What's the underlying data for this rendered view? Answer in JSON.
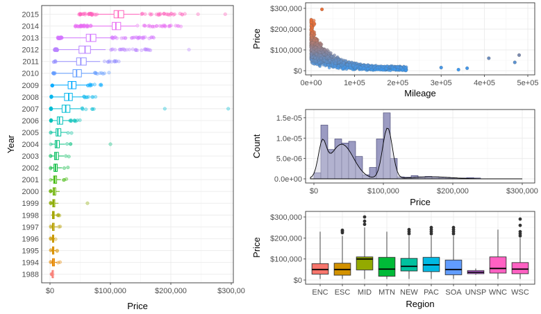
{
  "chart_data": [
    {
      "type": "boxplot",
      "orientation": "horizontal",
      "xlabel": "Price",
      "ylabel": "Year",
      "x_ticks": [
        "$0",
        "$100,000",
        "$200,000",
        "$300,00"
      ],
      "xlim": [
        0,
        300000
      ],
      "grid": true,
      "legend": "none",
      "series": [
        {
          "year": "1988",
          "color": "#F8766D",
          "q1": 3500,
          "median": 3800,
          "q3": 4200,
          "whisker_low": 3500,
          "whisker_high": 4200
        },
        {
          "year": "1994",
          "color": "#E58700",
          "q1": 4000,
          "median": 5500,
          "q3": 7500,
          "whisker_low": 1500,
          "whisker_high": 12000
        },
        {
          "year": "1995",
          "color": "#D89000",
          "q1": 4000,
          "median": 5000,
          "q3": 6500,
          "whisker_low": 1500,
          "whisker_high": 10000
        },
        {
          "year": "1996",
          "color": "#C99800",
          "q1": 4000,
          "median": 5000,
          "q3": 6000,
          "whisker_low": 1500,
          "whisker_high": 8000
        },
        {
          "year": "1997",
          "color": "#B79F00",
          "q1": 4000,
          "median": 5000,
          "q3": 7000,
          "whisker_low": 1500,
          "whisker_high": 12000
        },
        {
          "year": "1998",
          "color": "#A3A500",
          "q1": 4000,
          "median": 5500,
          "q3": 7000,
          "whisker_low": 1500,
          "whisker_high": 12000
        },
        {
          "year": "1999",
          "color": "#8BAB00",
          "q1": 4500,
          "median": 6000,
          "q3": 8000,
          "whisker_low": 1500,
          "whisker_high": 14000
        },
        {
          "year": "2000",
          "color": "#6BB100",
          "q1": 5000,
          "median": 7000,
          "q3": 9500,
          "whisker_low": 1500,
          "whisker_high": 16000
        },
        {
          "year": "2001",
          "color": "#39B600",
          "q1": 6000,
          "median": 8000,
          "q3": 11000,
          "whisker_low": 1500,
          "whisker_high": 18000
        },
        {
          "year": "2002",
          "color": "#00BA38",
          "q1": 6500,
          "median": 9000,
          "q3": 12000,
          "whisker_low": 1500,
          "whisker_high": 20000
        },
        {
          "year": "2003",
          "color": "#00BD5C",
          "q1": 7500,
          "median": 10000,
          "q3": 14000,
          "whisker_low": 1500,
          "whisker_high": 23000
        },
        {
          "year": "2004",
          "color": "#00BF7D",
          "q1": 8500,
          "median": 11000,
          "q3": 15500,
          "whisker_low": 1500,
          "whisker_high": 25000
        },
        {
          "year": "2005",
          "color": "#00C19C",
          "q1": 10000,
          "median": 13000,
          "q3": 18000,
          "whisker_low": 1500,
          "whisker_high": 28000
        },
        {
          "year": "2006",
          "color": "#00C0B8",
          "q1": 12000,
          "median": 15500,
          "q3": 21000,
          "whisker_low": 2000,
          "whisker_high": 33000
        },
        {
          "year": "2007",
          "color": "#00BCD4",
          "q1": 20000,
          "median": 26000,
          "q3": 33000,
          "whisker_low": 2000,
          "whisker_high": 50000
        },
        {
          "year": "2008",
          "color": "#00B5EE",
          "q1": 24000,
          "median": 31000,
          "q3": 37000,
          "whisker_low": 3000,
          "whisker_high": 55000
        },
        {
          "year": "2009",
          "color": "#00A9FF",
          "q1": 30000,
          "median": 36000,
          "q3": 43000,
          "whisker_low": 5000,
          "whisker_high": 62000
        },
        {
          "year": "2010",
          "color": "#619CFF",
          "q1": 38000,
          "median": 44000,
          "q3": 52000,
          "whisker_low": 8000,
          "whisker_high": 72000
        },
        {
          "year": "2011",
          "color": "#9590FF",
          "q1": 44000,
          "median": 51000,
          "q3": 60000,
          "whisker_low": 10000,
          "whisker_high": 83000
        },
        {
          "year": "2012",
          "color": "#B983FF",
          "q1": 48000,
          "median": 58000,
          "q3": 67000,
          "whisker_low": 12000,
          "whisker_high": 92000
        },
        {
          "year": "2013",
          "color": "#D376FF",
          "q1": 60000,
          "median": 67000,
          "q3": 76000,
          "whisker_low": 20000,
          "whisker_high": 102000
        },
        {
          "year": "2014",
          "color": "#E76BF3",
          "q1": 103000,
          "median": 109000,
          "q3": 117000,
          "whisker_low": 68000,
          "whisker_high": 142000
        },
        {
          "year": "2015",
          "color": "#FF62BC",
          "q1": 106000,
          "median": 113000,
          "q3": 122000,
          "whisker_low": 78000,
          "whisker_high": 148000
        }
      ]
    },
    {
      "type": "scatter",
      "xlabel": "Mileage",
      "ylabel": "Price",
      "x_ticks": [
        "0e+00",
        "1e+05",
        "2e+05",
        "3e+05",
        "4e+05",
        "5e+05"
      ],
      "y_ticks": [
        "$0",
        "$100,000",
        "$200,000",
        "$300,000"
      ],
      "xlim": [
        0,
        500000
      ],
      "ylim": [
        0,
        300000
      ],
      "color_gradient": [
        "#3A9AF4",
        "#E8703A"
      ],
      "grid": true,
      "legend": "none"
    },
    {
      "type": "histogram",
      "xlabel": "Price",
      "ylabel": "Count",
      "x_ticks": [
        "$0",
        "$100,000",
        "$200,000",
        "$300,000"
      ],
      "y_ticks": [
        "0.0e+00",
        "5.0e-06",
        "1.0e-05",
        "1.5e-05"
      ],
      "xlim": [
        0,
        300000
      ],
      "ylim": [
        0,
        1.6e-05
      ],
      "bin_width": 10000,
      "bins_start": [
        0,
        10000,
        20000,
        30000,
        40000,
        50000,
        60000,
        70000,
        80000,
        90000,
        100000,
        110000,
        120000,
        130000,
        140000,
        150000,
        160000,
        170000,
        180000,
        190000,
        200000,
        210000,
        220000,
        230000
      ],
      "density": [
        1.5e-06,
        1.32e-05,
        7.2e-06,
        9.8e-06,
        8.8e-06,
        9.2e-06,
        5.5e-06,
        1e-06,
        2.8e-06,
        9.8e-06,
        1.62e-05,
        5e-06,
        5e-07,
        4e-07,
        8e-07,
        5e-07,
        6e-07,
        5e-07,
        3e-07,
        2e-07,
        2e-07,
        2e-07,
        3e-07,
        2e-07
      ],
      "bar_color": "#9B9BC2",
      "density_curve": true,
      "grid": true,
      "legend": "none"
    },
    {
      "type": "boxplot",
      "orientation": "vertical",
      "xlabel": "Region",
      "ylabel": "Price",
      "y_ticks": [
        "$0",
        "$100,000",
        "$200,000",
        "$300,000"
      ],
      "ylim": [
        0,
        300000
      ],
      "grid": true,
      "legend": "none",
      "series": [
        {
          "region": "ENC",
          "color": "#F8766D",
          "q1": 28000,
          "median": 50000,
          "q3": 78000,
          "whisker_low": 5000,
          "whisker_high": 230000,
          "outliers": []
        },
        {
          "region": "ESC",
          "color": "#D39200",
          "q1": 23000,
          "median": 50000,
          "q3": 80000,
          "whisker_low": 5000,
          "whisker_high": 210000,
          "outliers": [
            225000,
            232000,
            237000
          ]
        },
        {
          "region": "MID",
          "color": "#93AA00",
          "q1": 48000,
          "median": 100000,
          "q3": 110000,
          "whisker_low": 5000,
          "whisker_high": 250000,
          "outliers": [
            265000,
            280000,
            300000
          ]
        },
        {
          "region": "MTN",
          "color": "#00BA38",
          "q1": 18000,
          "median": 52000,
          "q3": 108000,
          "whisker_low": 5000,
          "whisker_high": 230000,
          "outliers": []
        },
        {
          "region": "NEW",
          "color": "#00C19F",
          "q1": 43000,
          "median": 65000,
          "q3": 103000,
          "whisker_low": 5000,
          "whisker_high": 210000,
          "outliers": [
            220000,
            230000,
            240000
          ]
        },
        {
          "region": "PAC",
          "color": "#00B9E3",
          "q1": 40000,
          "median": 72000,
          "q3": 108000,
          "whisker_low": 5000,
          "whisker_high": 210000,
          "outliers": [
            220000,
            230000,
            240000,
            250000
          ]
        },
        {
          "region": "SOA",
          "color": "#619CFF",
          "q1": 25000,
          "median": 50000,
          "q3": 95000,
          "whisker_low": 5000,
          "whisker_high": 210000,
          "outliers": [
            220000,
            230000,
            240000,
            250000
          ]
        },
        {
          "region": "UNSP",
          "color": "#DB72FB",
          "q1": 30000,
          "median": 37000,
          "q3": 45000,
          "whisker_low": 25000,
          "whisker_high": 55000,
          "outliers": []
        },
        {
          "region": "WNC",
          "color": "#FF61C3",
          "q1": 33000,
          "median": 55000,
          "q3": 110000,
          "whisker_low": 5000,
          "whisker_high": 240000,
          "outliers": []
        },
        {
          "region": "WSC",
          "color": "#FF61C3",
          "q1": 30000,
          "median": 52000,
          "q3": 83000,
          "whisker_low": 5000,
          "whisker_high": 200000,
          "outliers": [
            210000,
            220000,
            230000,
            260000,
            290000
          ]
        }
      ]
    }
  ]
}
